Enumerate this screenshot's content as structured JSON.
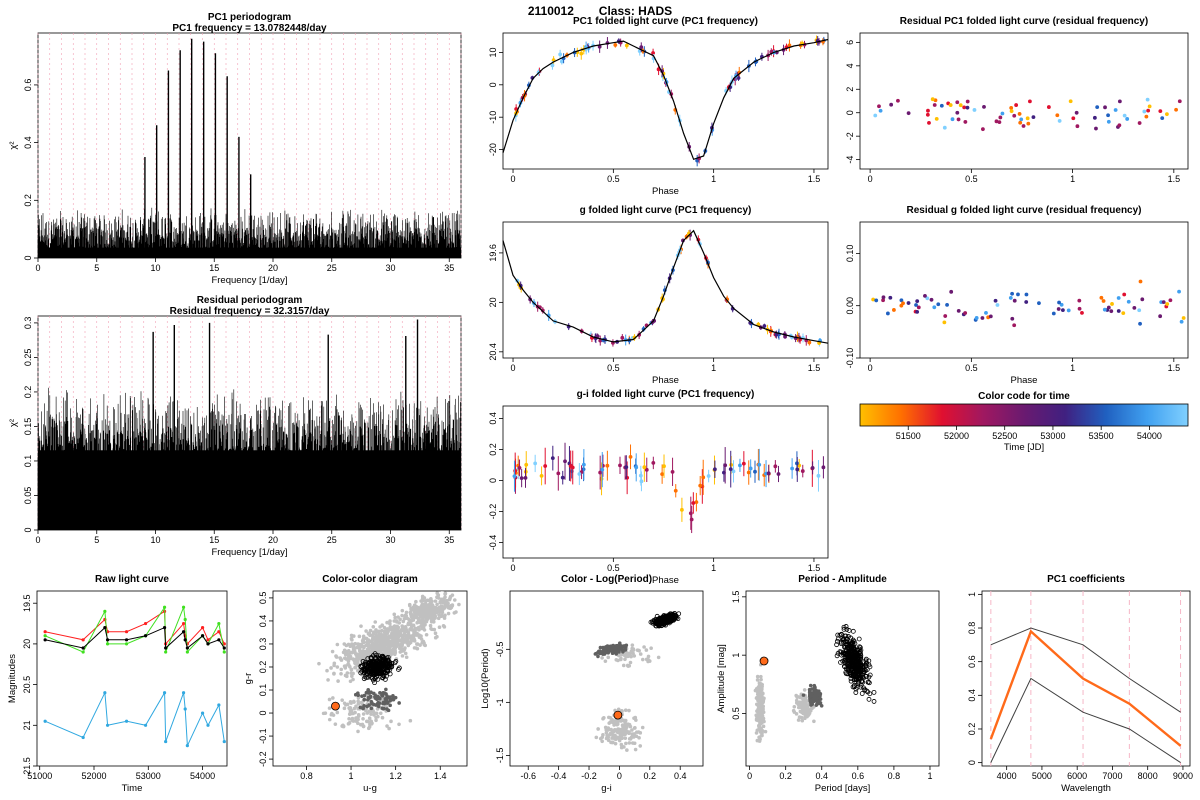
{
  "page": {
    "object_id": "2110012",
    "class_label": "Class: HADS"
  },
  "colors": {
    "dotted_grid": "#f2a0b4",
    "dashed_grid": "#f6b7c7",
    "model_line": "#000000",
    "raw_g": "#ff2020",
    "raw_r": "#40e020",
    "raw_i": "#000000",
    "raw_u": "#30a8e0",
    "marker_fill": "#ff6a1a",
    "coef_main": "#ff6a1a",
    "bg_points": "#c0c0c0",
    "mid_points": "#606060"
  },
  "chart_data": [
    {
      "id": "pc1_periodogram",
      "type": "line",
      "title": "PC1 periodogram",
      "subtitle": "PC1 frequency = 13.0782448/day",
      "xlabel": "Frequency [1/day]",
      "ylabel": "χ²",
      "xlim": [
        0,
        36
      ],
      "ylim": [
        0,
        0.78
      ],
      "xticks": [
        0,
        5,
        10,
        15,
        20,
        25,
        30,
        35
      ],
      "yticks": [
        0.0,
        0.2,
        0.4,
        0.6
      ],
      "baseline": 0.18,
      "peaks": [
        {
          "x": 9.1,
          "y": 0.35
        },
        {
          "x": 10.1,
          "y": 0.46
        },
        {
          "x": 11.1,
          "y": 0.65
        },
        {
          "x": 12.1,
          "y": 0.72
        },
        {
          "x": 13.08,
          "y": 0.76
        },
        {
          "x": 14.1,
          "y": 0.75
        },
        {
          "x": 15.1,
          "y": 0.71
        },
        {
          "x": 16.1,
          "y": 0.63
        },
        {
          "x": 17.1,
          "y": 0.42
        },
        {
          "x": 18.1,
          "y": 0.29
        }
      ]
    },
    {
      "id": "residual_periodogram",
      "type": "line",
      "title": "Residual periodogram",
      "subtitle": "Residual frequency = 32.3157/day",
      "xlabel": "Frequency [1/day]",
      "ylabel": "χ²",
      "xlim": [
        0,
        36
      ],
      "ylim": [
        0,
        0.31
      ],
      "xticks": [
        0,
        5,
        10,
        15,
        20,
        25,
        30,
        35
      ],
      "yticks": [
        0.0,
        0.05,
        0.1,
        0.15,
        0.2,
        0.25,
        0.3
      ],
      "baseline": 0.21,
      "peaks": [
        {
          "x": 32.3,
          "y": 0.305
        },
        {
          "x": 14.6,
          "y": 0.3
        },
        {
          "x": 11.6,
          "y": 0.297
        },
        {
          "x": 9.8,
          "y": 0.287
        },
        {
          "x": 24.7,
          "y": 0.283
        },
        {
          "x": 31.3,
          "y": 0.281
        }
      ]
    },
    {
      "id": "pc1_folded",
      "type": "scatter",
      "title": "PC1 folded light curve (PC1 frequency)",
      "xlabel": "Phase",
      "ylabel": "",
      "xlim": [
        -0.05,
        1.57
      ],
      "ylim": [
        -26,
        16
      ],
      "xticks": [
        0,
        0.5,
        1,
        1.5
      ],
      "yticks": [
        -20,
        -10,
        0,
        10
      ],
      "curve": [
        [
          -0.05,
          -21
        ],
        [
          0.0,
          -11
        ],
        [
          0.05,
          -4
        ],
        [
          0.1,
          2
        ],
        [
          0.15,
          5
        ],
        [
          0.2,
          7
        ],
        [
          0.3,
          10
        ],
        [
          0.4,
          12
        ],
        [
          0.5,
          13
        ],
        [
          0.55,
          13.5
        ],
        [
          0.6,
          12
        ],
        [
          0.7,
          9
        ],
        [
          0.75,
          3
        ],
        [
          0.8,
          -5
        ],
        [
          0.85,
          -15
        ],
        [
          0.9,
          -23
        ],
        [
          0.95,
          -22
        ],
        [
          1.0,
          -12
        ],
        [
          1.05,
          -4
        ],
        [
          1.1,
          2
        ],
        [
          1.2,
          7
        ],
        [
          1.3,
          10
        ],
        [
          1.4,
          12
        ],
        [
          1.5,
          13
        ],
        [
          1.57,
          14
        ]
      ]
    },
    {
      "id": "residual_pc1_folded",
      "type": "scatter",
      "title": "Residual PC1 folded light curve (residual frequency)",
      "xlabel": "",
      "ylabel": "",
      "xlim": [
        -0.05,
        1.57
      ],
      "ylim": [
        -4.8,
        6.8
      ],
      "xticks": [
        0,
        0.5,
        1,
        1.5
      ],
      "yticks": [
        -4,
        -2,
        0,
        2,
        4,
        6
      ]
    },
    {
      "id": "g_folded",
      "type": "scatter",
      "title": "g folded light curve (PC1 frequency)",
      "xlabel": "Phase",
      "ylabel": "",
      "xlim": [
        -0.05,
        1.57
      ],
      "ylim": [
        20.45,
        19.35
      ],
      "xticks": [
        0,
        0.5,
        1,
        1.5
      ],
      "yticks": [
        19.6,
        20.0,
        20.4
      ],
      "curve": [
        [
          -0.05,
          19.5
        ],
        [
          0.0,
          19.78
        ],
        [
          0.05,
          19.9
        ],
        [
          0.1,
          20.0
        ],
        [
          0.2,
          20.15
        ],
        [
          0.3,
          20.2
        ],
        [
          0.4,
          20.28
        ],
        [
          0.5,
          20.32
        ],
        [
          0.6,
          20.3
        ],
        [
          0.7,
          20.15
        ],
        [
          0.75,
          19.95
        ],
        [
          0.8,
          19.72
        ],
        [
          0.85,
          19.5
        ],
        [
          0.9,
          19.42
        ],
        [
          0.95,
          19.6
        ],
        [
          1.0,
          19.8
        ],
        [
          1.05,
          19.95
        ],
        [
          1.1,
          20.05
        ],
        [
          1.2,
          20.18
        ],
        [
          1.3,
          20.24
        ],
        [
          1.4,
          20.28
        ],
        [
          1.5,
          20.31
        ],
        [
          1.57,
          20.33
        ]
      ]
    },
    {
      "id": "residual_g_folded",
      "type": "scatter",
      "title": "Residual g folded light curve (residual frequency)",
      "xlabel": "Phase",
      "ylabel": "",
      "xlim": [
        -0.05,
        1.57
      ],
      "ylim": [
        -0.1,
        0.16
      ],
      "xticks": [
        0,
        0.5,
        1,
        1.5
      ],
      "yticks": [
        -0.1,
        0.0,
        0.1
      ],
      "ytick_labels": [
        "-0.10",
        "0.00",
        "0.10"
      ]
    },
    {
      "id": "gi_folded",
      "type": "scatter",
      "title": "g-i folded light curve (PC1 frequency)",
      "xlabel": "Phase",
      "ylabel": "",
      "xlim": [
        -0.05,
        1.57
      ],
      "ylim": [
        -0.5,
        0.48
      ],
      "xticks": [
        0,
        0.5,
        1,
        1.5
      ],
      "yticks": [
        -0.4,
        -0.2,
        0.0,
        0.2,
        0.4
      ]
    },
    {
      "id": "color_bar",
      "type": "heatmap",
      "title": "Color code for time",
      "xlabel": "Time [JD]",
      "xlim": [
        51000,
        54400
      ],
      "xticks": [
        51500,
        52000,
        52500,
        53000,
        53500,
        54000
      ],
      "colormap": [
        "#ffc000",
        "#ff7000",
        "#e01030",
        "#a01860",
        "#6a1a70",
        "#402080",
        "#2060c0",
        "#40a0f0",
        "#80d0ff"
      ]
    },
    {
      "id": "raw_light_curve",
      "type": "line",
      "title": "Raw light curve",
      "xlabel": "Time",
      "ylabel": "Magnitudes",
      "xlim": [
        50950,
        54450
      ],
      "ylim": [
        21.5,
        19.35
      ],
      "xticks": [
        51000,
        52000,
        53000,
        54000
      ],
      "yticks": [
        19.5,
        20.0,
        20.5,
        21.0,
        21.5
      ],
      "series": [
        {
          "color": "#ff2020",
          "x": [
            51100,
            51800,
            52200,
            52250,
            52600,
            52950,
            53300,
            53320,
            53650,
            53680,
            53720,
            54000,
            54100,
            54300,
            54400
          ],
          "y": [
            19.85,
            19.95,
            19.7,
            19.85,
            19.85,
            19.75,
            19.6,
            20.0,
            19.75,
            19.9,
            20.0,
            19.8,
            19.95,
            19.85,
            20.0
          ]
        },
        {
          "color": "#40e020",
          "x": [
            51100,
            51800,
            52200,
            52250,
            52600,
            52950,
            53300,
            53320,
            53650,
            53680,
            53720,
            54000,
            54100,
            54300,
            54400
          ],
          "y": [
            19.9,
            20.1,
            19.6,
            20.0,
            20.0,
            19.9,
            19.55,
            20.1,
            19.55,
            19.7,
            20.1,
            19.9,
            20.0,
            19.75,
            20.1
          ]
        },
        {
          "color": "#000000",
          "x": [
            51100,
            51800,
            52200,
            52250,
            52600,
            52950,
            53300,
            53320,
            53650,
            53680,
            53720,
            54000,
            54100,
            54300,
            54400
          ],
          "y": [
            19.95,
            20.05,
            19.8,
            19.95,
            19.95,
            19.9,
            19.8,
            20.05,
            19.85,
            19.95,
            20.05,
            19.9,
            20.0,
            19.95,
            20.05
          ]
        },
        {
          "color": "#30a8e0",
          "x": [
            51100,
            51800,
            52200,
            52250,
            52600,
            52950,
            53300,
            53320,
            53650,
            53680,
            53720,
            54000,
            54100,
            54300,
            54400
          ],
          "y": [
            20.95,
            21.15,
            20.6,
            21.0,
            20.95,
            21.0,
            20.6,
            21.2,
            20.6,
            20.8,
            21.25,
            20.85,
            21.0,
            20.75,
            21.2
          ]
        }
      ]
    },
    {
      "id": "color_color",
      "type": "scatter",
      "title": "Color-color diagram",
      "xlabel": "u-g",
      "ylabel": "g-r",
      "xlim": [
        0.65,
        1.52
      ],
      "ylim": [
        -0.23,
        0.53
      ],
      "xticks": [
        0.8,
        1.0,
        1.2,
        1.4
      ],
      "yticks": [
        -0.2,
        -0.1,
        0.0,
        0.1,
        0.2,
        0.3,
        0.4,
        0.5
      ],
      "highlight": {
        "x": 0.93,
        "y": 0.03
      }
    },
    {
      "id": "color_logperiod",
      "type": "scatter",
      "title": "Color - Log(Period)",
      "xlabel": "g-i",
      "ylabel": "Log10(Period)",
      "xlim": [
        -0.72,
        0.55
      ],
      "ylim": [
        -1.6,
        0.05
      ],
      "xticks": [
        -0.6,
        -0.4,
        -0.2,
        0.0,
        0.2,
        0.4
      ],
      "yticks": [
        -1.5,
        -1.0,
        -0.5
      ],
      "highlight": {
        "x": -0.01,
        "y": -1.12
      }
    },
    {
      "id": "period_amplitude",
      "type": "scatter",
      "title": "Period - Amplitude",
      "xlabel": "Period [days]",
      "ylabel": "Amplitude [mag]",
      "xlim": [
        -0.02,
        1.05
      ],
      "ylim": [
        0.05,
        1.55
      ],
      "xticks": [
        0.0,
        0.2,
        0.4,
        0.6,
        0.8,
        1.0
      ],
      "yticks": [
        0.5,
        1.0,
        1.5
      ],
      "highlight": {
        "x": 0.08,
        "y": 0.95
      }
    },
    {
      "id": "pc1_coefficients",
      "type": "line",
      "title": "PC1 coefficients",
      "xlabel": "Wavelength",
      "ylabel": "",
      "xlim": [
        3300,
        9200
      ],
      "ylim": [
        -0.02,
        1.02
      ],
      "xticks": [
        4000,
        5000,
        6000,
        7000,
        8000,
        9000
      ],
      "yticks": [
        0.0,
        0.2,
        0.4,
        0.6,
        0.8,
        1.0
      ],
      "vlines": [
        3551,
        4686,
        6166,
        7480,
        8932
      ],
      "series": [
        {
          "name": "",
          "color": "#ff6a1a",
          "x": [
            3551,
            4686,
            6166,
            7480,
            8932
          ],
          "y": [
            0.14,
            0.78,
            0.5,
            0.35,
            0.1
          ]
        },
        {
          "name": "",
          "color": "#404040",
          "x": [
            3551,
            4686,
            6166,
            7480,
            8932
          ],
          "y": [
            0.7,
            0.8,
            0.7,
            0.5,
            0.3
          ]
        },
        {
          "name": "",
          "color": "#404040",
          "x": [
            3551,
            4686,
            6166,
            7480,
            8932
          ],
          "y": [
            0.0,
            0.5,
            0.3,
            0.2,
            0.0
          ]
        }
      ]
    }
  ]
}
